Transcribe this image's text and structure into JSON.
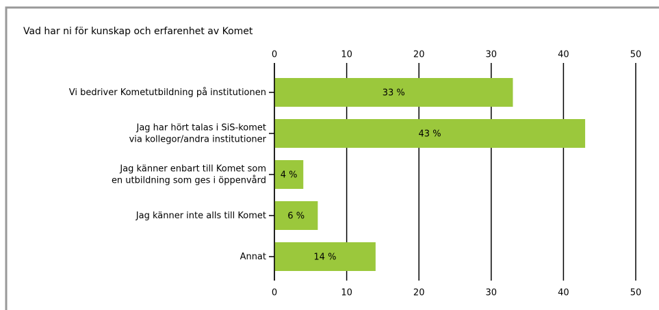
{
  "chart_data": {
    "type": "bar",
    "orientation": "horizontal",
    "title": "Vad har ni för kunskap och erfarenhet av Komet",
    "categories": [
      [
        "Vi bedriver Kometutbildning på institutionen"
      ],
      [
        "Jag har hört talas i SiS-komet",
        "via kollegor/andra institutioner"
      ],
      [
        "Jag känner enbart till Komet som",
        "en utbildning som ges i öppenvård"
      ],
      [
        "Jag känner inte alls till Komet"
      ],
      [
        "Annat"
      ]
    ],
    "values": [
      33,
      43,
      4,
      6,
      14
    ],
    "value_labels": [
      "33 %",
      "43 %",
      "4 %",
      "6 %",
      "14 %"
    ],
    "color": "#9bc83c",
    "xlim": [
      0,
      50
    ],
    "xticks": [
      0,
      10,
      20,
      30,
      40,
      50
    ],
    "grid": true
  }
}
